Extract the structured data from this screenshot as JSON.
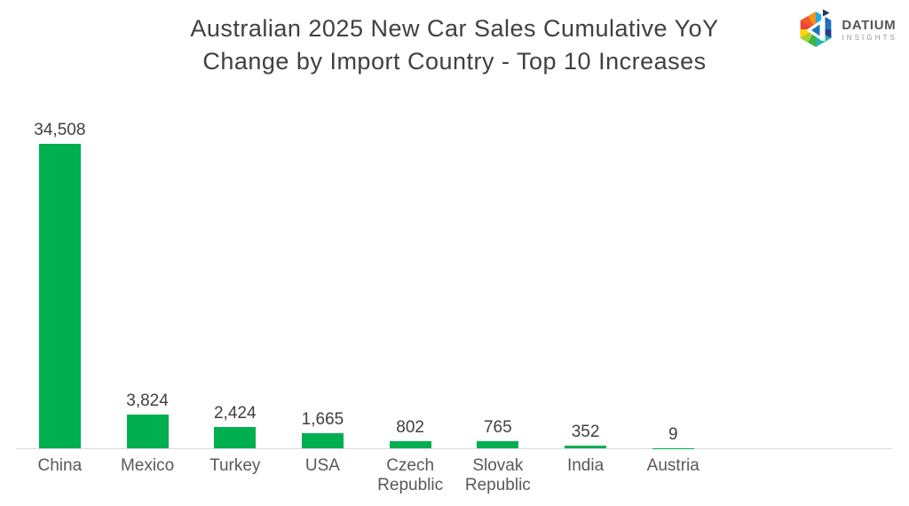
{
  "header": {
    "title_line1": "Australian 2025 New Car Sales Cumulative YoY",
    "title_line2": "Change by Import Country - Top 10 Increases"
  },
  "logo": {
    "name": "DATIUM",
    "subname": "INSIGHTS"
  },
  "chart_data": {
    "type": "bar",
    "title": "Australian 2025 New Car Sales Cumulative YoY Change by Import Country - Top 10 Increases",
    "categories": [
      "China",
      "Mexico",
      "Turkey",
      "USA",
      "Czech Republic",
      "Slovak Republic",
      "India",
      "Austria"
    ],
    "values": [
      34508,
      3824,
      2424,
      1665,
      802,
      765,
      352,
      9
    ],
    "value_labels": [
      "34,508",
      "3,824",
      "2,424",
      "1,665",
      "802",
      "765",
      "352",
      "9"
    ],
    "xlabel": "",
    "ylabel": "",
    "ylim": [
      0,
      34508
    ],
    "slot_count": 10,
    "grid": false,
    "legend": "none",
    "data_labels": "above bars",
    "bar_color": "#00AF50",
    "axis_line_color": "#D9D9D9",
    "label_color": "#595959",
    "title_color": "#404040"
  }
}
